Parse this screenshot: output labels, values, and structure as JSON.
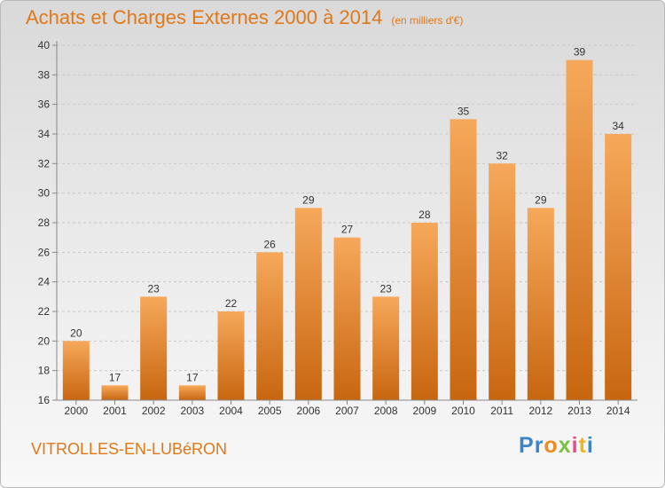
{
  "header": {
    "title": "Achats et Charges Externes 2000 à 2014",
    "subtitle": "(en milliers d'€)"
  },
  "footer": {
    "commune": "VITROLLES-EN-LUBéRON",
    "logo_text": "Proxiti"
  },
  "colors": {
    "accent": "#e07818",
    "bar_top": "#f6a85a",
    "bar_bottom": "#c86610"
  },
  "chart_data": {
    "type": "bar",
    "title": "Achats et Charges Externes 2000 à 2014",
    "subtitle": "(en milliers d'€)",
    "categories": [
      "2000",
      "2001",
      "2002",
      "2003",
      "2004",
      "2005",
      "2006",
      "2007",
      "2008",
      "2009",
      "2010",
      "2011",
      "2012",
      "2013",
      "2014"
    ],
    "values": [
      20,
      17,
      23,
      17,
      22,
      26,
      29,
      27,
      23,
      28,
      35,
      32,
      29,
      39,
      34
    ],
    "xlabel": "",
    "ylabel": "",
    "ylim": [
      16,
      40
    ],
    "yticks": [
      16,
      18,
      20,
      22,
      24,
      26,
      28,
      30,
      32,
      34,
      36,
      38,
      40
    ],
    "grid": true,
    "legend": "none"
  }
}
